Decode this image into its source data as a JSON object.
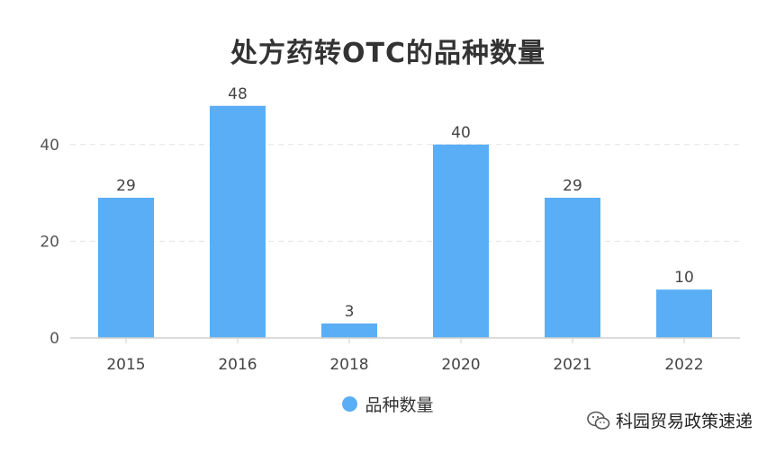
{
  "chart_data": {
    "type": "bar",
    "title": "处方药转OTC的品种数量",
    "categories": [
      "2015",
      "2016",
      "2018",
      "2020",
      "2021",
      "2022"
    ],
    "series": [
      {
        "name": "品种数量",
        "values": [
          29,
          48,
          3,
          40,
          29,
          10
        ]
      }
    ],
    "ylim": [
      0,
      50
    ],
    "yticks": [
      0,
      20,
      40
    ],
    "grid": true,
    "legend_position": "bottom",
    "bar_color": "#5aaef5"
  },
  "watermark": {
    "text": "科园贸易政策速递"
  }
}
